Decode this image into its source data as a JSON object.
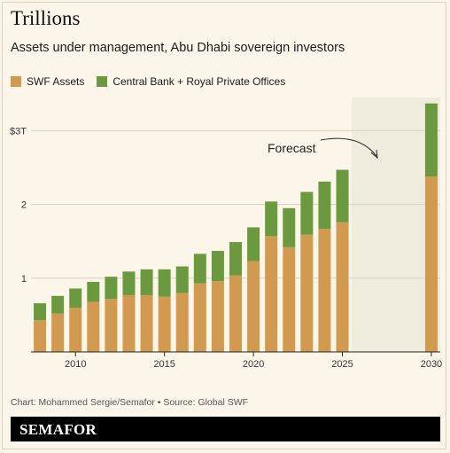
{
  "title": "Trillions",
  "subtitle": "Assets under management, Abu Dhabi sovereign investors",
  "footer": "Chart: Mohammed Sergie/Semafor • Source: Global SWF",
  "brand": "SEMAFOR",
  "colors": {
    "swf": "#d29a4e",
    "cb": "#6b9a3e",
    "forecast_bg": "#efecdd",
    "grid": "#d8d2c2"
  },
  "chart_data": {
    "type": "bar",
    "stacked": true,
    "x": [
      2008,
      2009,
      2010,
      2011,
      2012,
      2013,
      2014,
      2015,
      2016,
      2017,
      2018,
      2019,
      2020,
      2021,
      2022,
      2023,
      2024,
      2025,
      2030
    ],
    "series": [
      {
        "name": "SWF Assets",
        "values": [
          0.43,
          0.52,
          0.6,
          0.68,
          0.72,
          0.77,
          0.77,
          0.75,
          0.8,
          0.93,
          0.96,
          1.04,
          1.23,
          1.57,
          1.42,
          1.59,
          1.67,
          1.76,
          2.38
        ]
      },
      {
        "name": "Central Bank + Royal Private Offices",
        "values": [
          0.23,
          0.24,
          0.26,
          0.27,
          0.3,
          0.32,
          0.35,
          0.37,
          0.36,
          0.4,
          0.41,
          0.45,
          0.46,
          0.47,
          0.53,
          0.58,
          0.64,
          0.71,
          0.99
        ]
      }
    ],
    "ylim": [
      0,
      3.45
    ],
    "yticks": [
      {
        "value": 1,
        "label": "1"
      },
      {
        "value": 2,
        "label": "2"
      },
      {
        "value": 3,
        "label": "$3T"
      }
    ],
    "xticks": [
      2010,
      2015,
      2020,
      2025,
      2030
    ],
    "xlim": [
      2007.5,
      2030.5
    ],
    "forecast_region": [
      2025.5,
      2030.5
    ],
    "annotation": "Forecast",
    "legend_position": "top-left"
  }
}
